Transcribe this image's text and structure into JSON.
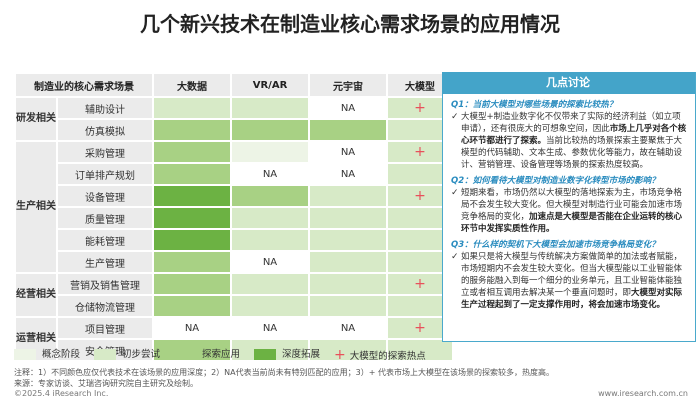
{
  "title": "几个新兴技术在制造业核心需求场景的应用情况",
  "colors": {
    "concept": "#edf4e6",
    "initial": "#d7eac7",
    "explore": "#a8d184",
    "deep": "#6cb243",
    "hot_star": "#e8505b",
    "panel_accent": "#44a4c9"
  },
  "table": {
    "header": {
      "scene": "制造业的核心需求场景",
      "cols": [
        "大数据",
        "VR/AR",
        "元宇宙",
        "大模型"
      ]
    },
    "groups": [
      {
        "name": "研发相关",
        "rows": [
          {
            "label": "辅助设计",
            "cells": [
              "initial",
              "initial",
              "NA",
              "hot"
            ]
          },
          {
            "label": "仿真模拟",
            "cells": [
              "explore",
              "explore",
              "explore",
              "initial"
            ]
          }
        ]
      },
      {
        "name": "生产相关",
        "rows": [
          {
            "label": "采购管理",
            "cells": [
              "explore",
              "concept",
              "NA",
              "hot"
            ]
          },
          {
            "label": "订单排产规划",
            "cells": [
              "explore",
              "NA",
              "NA",
              "initial"
            ]
          },
          {
            "label": "设备管理",
            "cells": [
              "deep",
              "explore",
              "initial",
              "hot"
            ]
          },
          {
            "label": "质量管理",
            "cells": [
              "deep",
              "initial",
              "initial",
              "initial"
            ]
          },
          {
            "label": "能耗管理",
            "cells": [
              "deep",
              "initial",
              "initial",
              "initial"
            ]
          },
          {
            "label": "生产管理",
            "cells": [
              "explore",
              "NA",
              "initial",
              "initial"
            ]
          }
        ]
      },
      {
        "name": "经营相关",
        "rows": [
          {
            "label": "营销及销售管理",
            "cells": [
              "explore",
              "initial",
              "initial",
              "hot"
            ]
          },
          {
            "label": "仓储物流管理",
            "cells": [
              "explore",
              "initial",
              "initial",
              "initial"
            ]
          }
        ]
      },
      {
        "name": "运营相关",
        "rows": [
          {
            "label": "项目管理",
            "cells": [
              "NA",
              "NA",
              "NA",
              "hot"
            ]
          },
          {
            "label": "安全管理",
            "cells": [
              "explore",
              "initial",
              "initial",
              "initial"
            ]
          }
        ]
      }
    ],
    "na_text": "NA",
    "hot_symbol": "+"
  },
  "panel": {
    "title": "几点讨论",
    "items": [
      {
        "q": "Q1：当前大模型对哪些场景的探索比较热？",
        "a_pre": "大模型+制造业数字化不仅带来了实际的经济利益（如立项申请），还有很庞大的可想象空间，因此",
        "a_bold": "市场上几乎对各个核心环节都进行了探索。",
        "a_post": "当前比较热的场景探索主要聚焦于大模型的代码辅助、文本生成、参数优化等能力，故在辅助设计、营销管理、设备管理等场景的探索热度较高。"
      },
      {
        "q": "Q2：如何看待大模型对制造业数字化转型市场的影响？",
        "a_pre": "短期来看，市场仍然以大模型的落地探索为主，市场竞争格局不会发生较大变化。但大模型对制造行业可能会加速市场竞争格局的变化，",
        "a_bold": "加速点是大模型是否能在企业运转的核心环节中发挥实质性作用。",
        "a_post": ""
      },
      {
        "q": "Q3：什么样的契机下大模型会加速市场竞争格局变化？",
        "a_pre": "如果只是将大模型与传统解决方案做简单的加法或者赋能，市场短期内不会发生较大变化。但当大模型能以工业智能体的服务能融入到每一个细分的业务单元，且工业智能体能独立或者相互调用去解决某一个垂直问题时，即",
        "a_bold": "大模型对实际生产过程起到了一定支撑作用时，将会加速市场变化。",
        "a_post": ""
      }
    ]
  },
  "legend": [
    {
      "key": "concept",
      "label": "概念阶段"
    },
    {
      "key": "initial",
      "label": "初步尝试"
    },
    {
      "key": "explore",
      "label": "探索应用"
    },
    {
      "key": "deep",
      "label": "深度拓展"
    },
    {
      "key": "hot",
      "label": "大模型的探索热点"
    }
  ],
  "note": "注释：1）不同颜色应仅代表技术在该场景的应用深度；2）NA代表当前尚未有特别匹配的应用；3）+ 代表市场上大模型在该场景的探索较多，热度高。",
  "source": "来源：专家访谈、艾瑞咨询研究院自主研究及绘制。",
  "footer_left": "©2025.4 iResearch Inc.",
  "footer_right": "www.iresearch.com.cn"
}
